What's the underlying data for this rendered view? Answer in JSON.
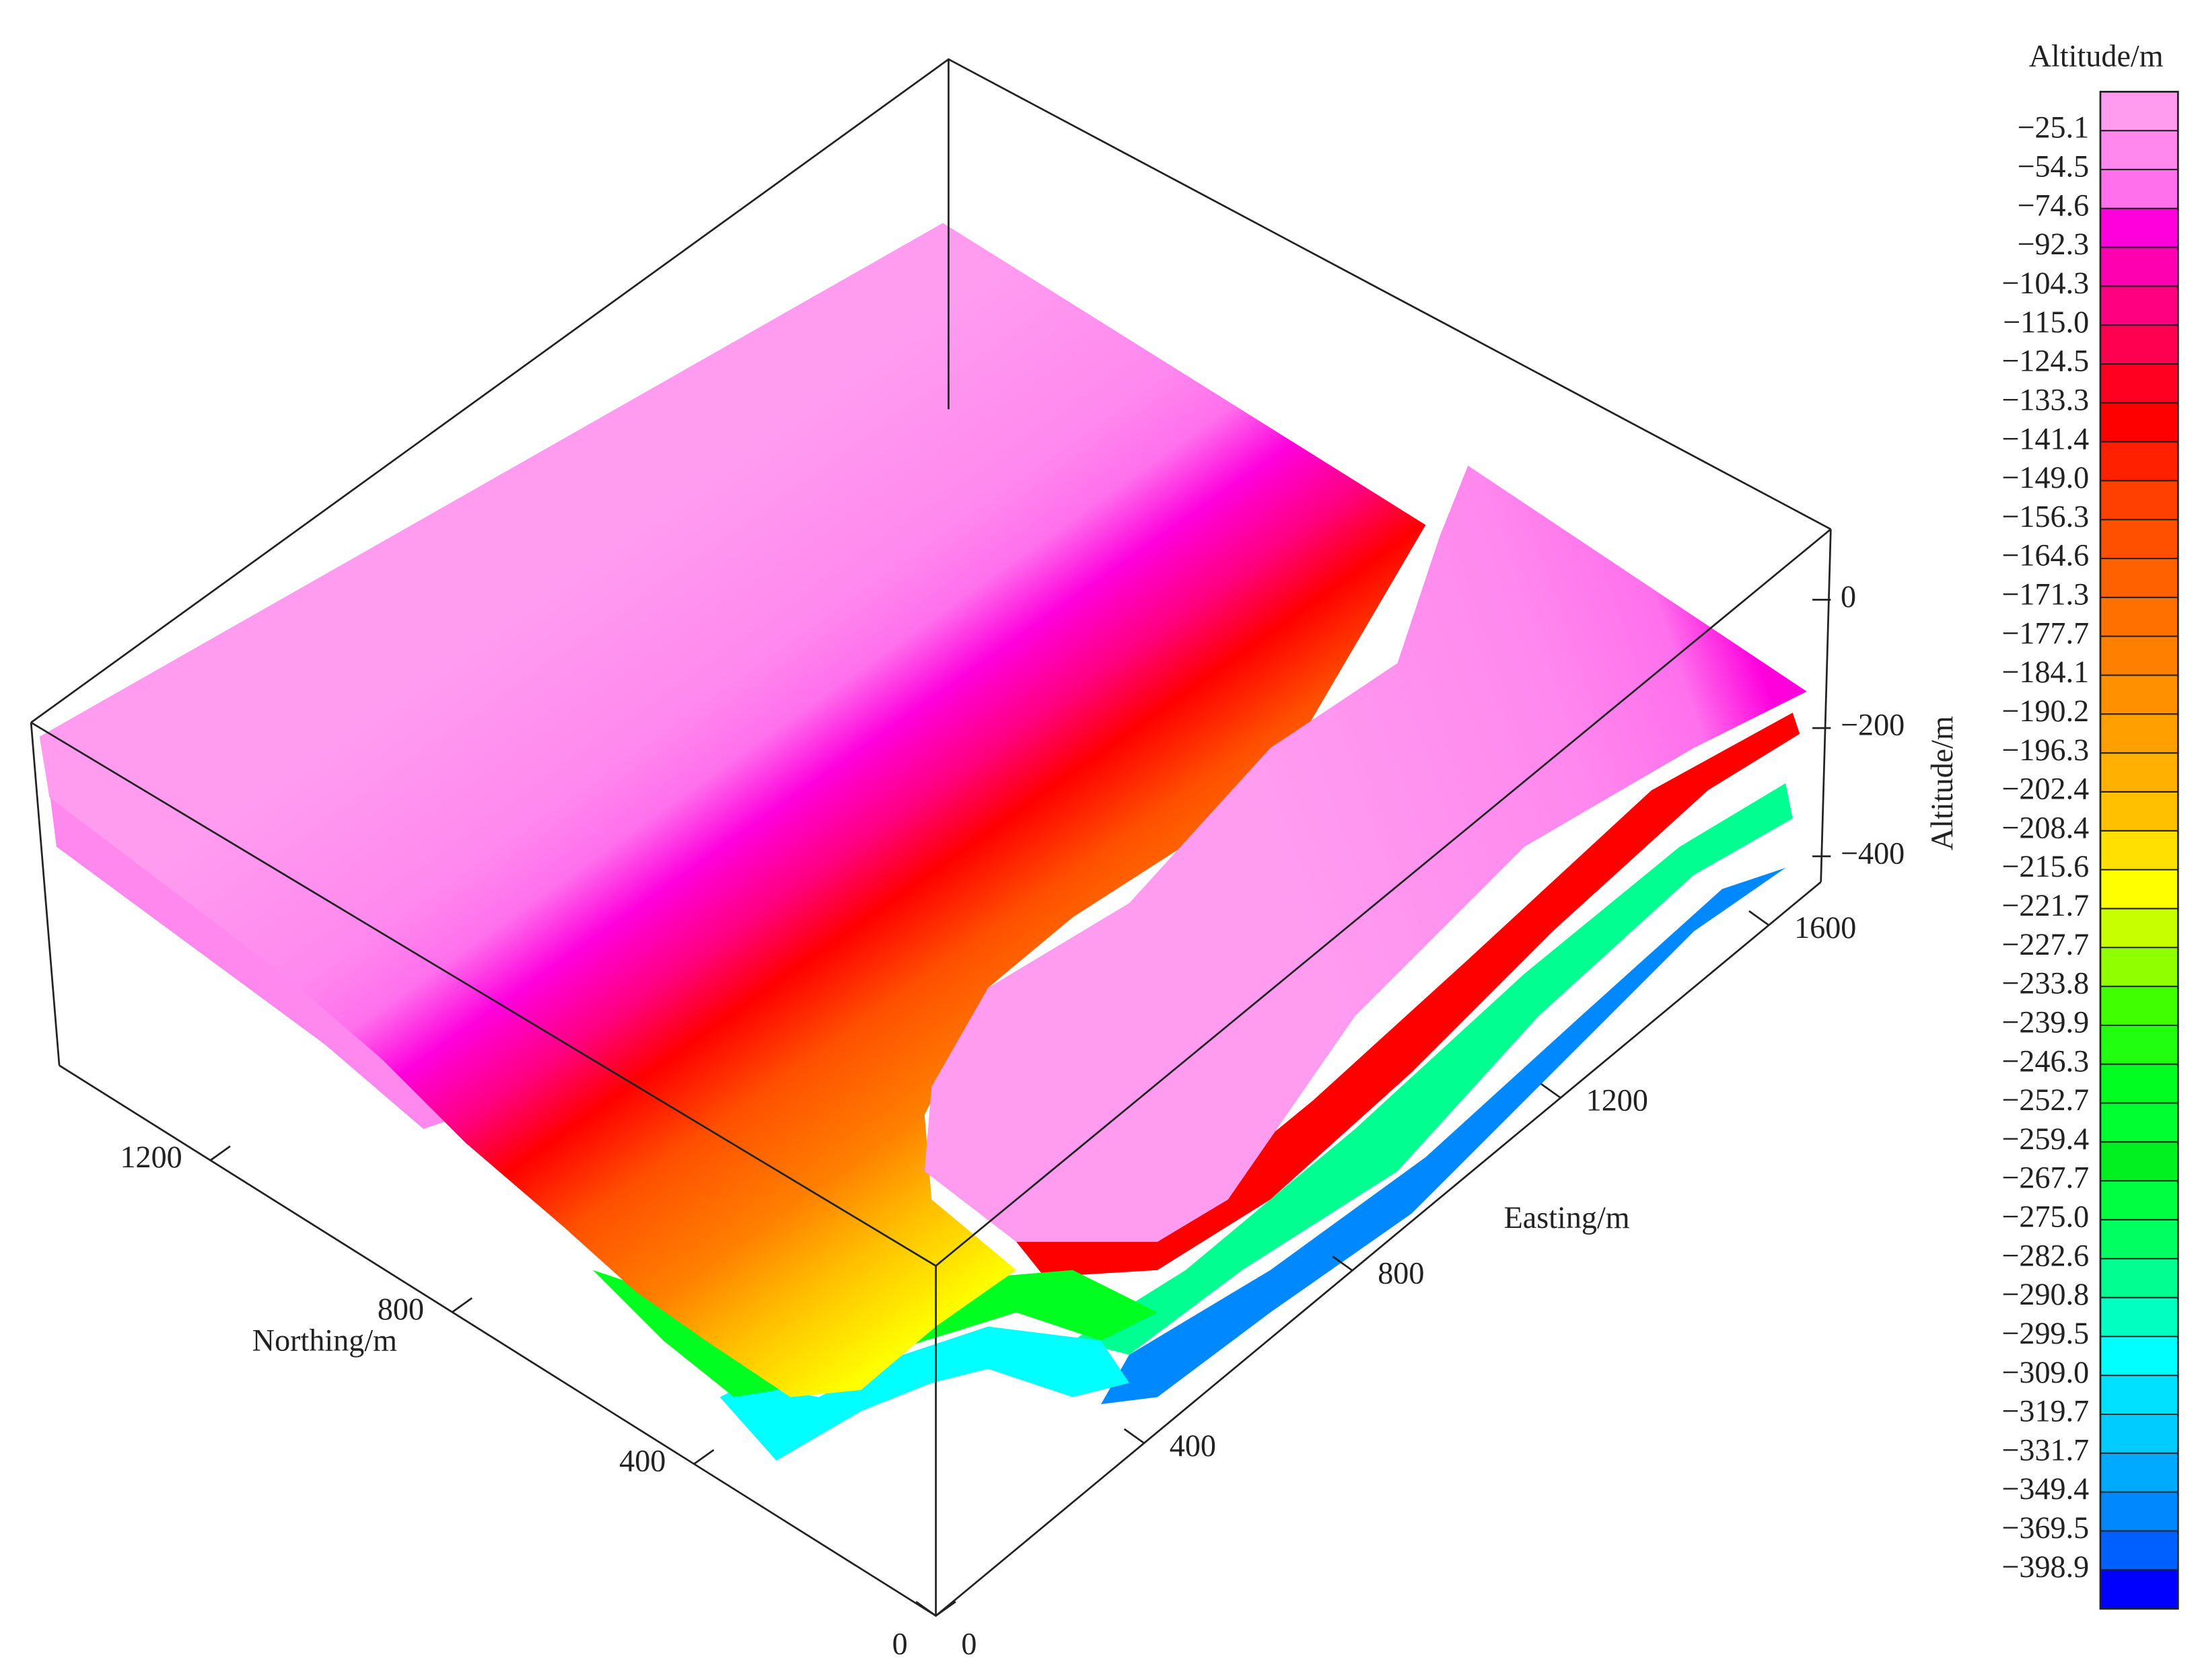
{
  "chart_data": {
    "type": "surface3d",
    "xlabel": "Northing/m",
    "ylabel": "Easting/m",
    "zlabel": "Altitude/m",
    "xlim": [
      0,
      1450
    ],
    "ylim": [
      0,
      1700
    ],
    "zlim": [
      -440,
      110
    ],
    "xticks": [
      0,
      400,
      800,
      1200
    ],
    "yticks": [
      0,
      400,
      800,
      1200,
      1600
    ],
    "zticks": [
      0,
      {
        "value": -200,
        "label": "−200"
      },
      {
        "value": -400,
        "label": "−400"
      }
    ],
    "colorbar": {
      "title": "Altitude/m",
      "levels": [
        {
          "value": -25.1,
          "label": "−25.1"
        },
        {
          "value": -54.5,
          "label": "−54.5"
        },
        {
          "value": -74.6,
          "label": "−74.6"
        },
        {
          "value": -92.3,
          "label": "−92.3"
        },
        {
          "value": -104.3,
          "label": "−104.3"
        },
        {
          "value": -115.0,
          "label": "−115.0"
        },
        {
          "value": -124.5,
          "label": "−124.5"
        },
        {
          "value": -133.3,
          "label": "−133.3"
        },
        {
          "value": -141.4,
          "label": "−141.4"
        },
        {
          "value": -149.0,
          "label": "−149.0"
        },
        {
          "value": -156.3,
          "label": "−156.3"
        },
        {
          "value": -164.6,
          "label": "−164.6"
        },
        {
          "value": -171.3,
          "label": "−171.3"
        },
        {
          "value": -177.7,
          "label": "−177.7"
        },
        {
          "value": -184.1,
          "label": "−184.1"
        },
        {
          "value": -190.2,
          "label": "−190.2"
        },
        {
          "value": -196.3,
          "label": "−196.3"
        },
        {
          "value": -202.4,
          "label": "−202.4"
        },
        {
          "value": -208.4,
          "label": "−208.4"
        },
        {
          "value": -215.6,
          "label": "−215.6"
        },
        {
          "value": -221.7,
          "label": "−221.7"
        },
        {
          "value": -227.7,
          "label": "−227.7"
        },
        {
          "value": -233.8,
          "label": "−233.8"
        },
        {
          "value": -239.9,
          "label": "−239.9"
        },
        {
          "value": -246.3,
          "label": "−246.3"
        },
        {
          "value": -252.7,
          "label": "−252.7"
        },
        {
          "value": -259.4,
          "label": "−259.4"
        },
        {
          "value": -267.7,
          "label": "−267.7"
        },
        {
          "value": -275.0,
          "label": "−275.0"
        },
        {
          "value": -282.6,
          "label": "−282.6"
        },
        {
          "value": -290.8,
          "label": "−290.8"
        },
        {
          "value": -299.5,
          "label": "−299.5"
        },
        {
          "value": -309.0,
          "label": "−309.0"
        },
        {
          "value": -319.7,
          "label": "−319.7"
        },
        {
          "value": -331.7,
          "label": "−331.7"
        },
        {
          "value": -349.4,
          "label": "−349.4"
        },
        {
          "value": -369.5,
          "label": "−369.5"
        },
        {
          "value": -398.9,
          "label": "−398.9"
        }
      ],
      "colors": [
        "#ff9cf0",
        "#ff88ee",
        "#ff70ec",
        "#ff00dd",
        "#ff00b0",
        "#ff0080",
        "#ff0050",
        "#ff0020",
        "#ff0000",
        "#ff2000",
        "#ff4000",
        "#ff5000",
        "#ff6000",
        "#ff7000",
        "#ff8000",
        "#ff9000",
        "#ffa000",
        "#ffb000",
        "#ffc000",
        "#ffe000",
        "#ffff00",
        "#c8ff00",
        "#90ff00",
        "#40ff00",
        "#20ff10",
        "#00ff20",
        "#00ff30",
        "#00f020",
        "#00ff40",
        "#00ff60",
        "#00ff90",
        "#00ffc0",
        "#00ffff",
        "#00e0ff",
        "#00ccff",
        "#00aaff",
        "#0088ff",
        "#0060ff",
        "#0000ff"
      ]
    }
  }
}
